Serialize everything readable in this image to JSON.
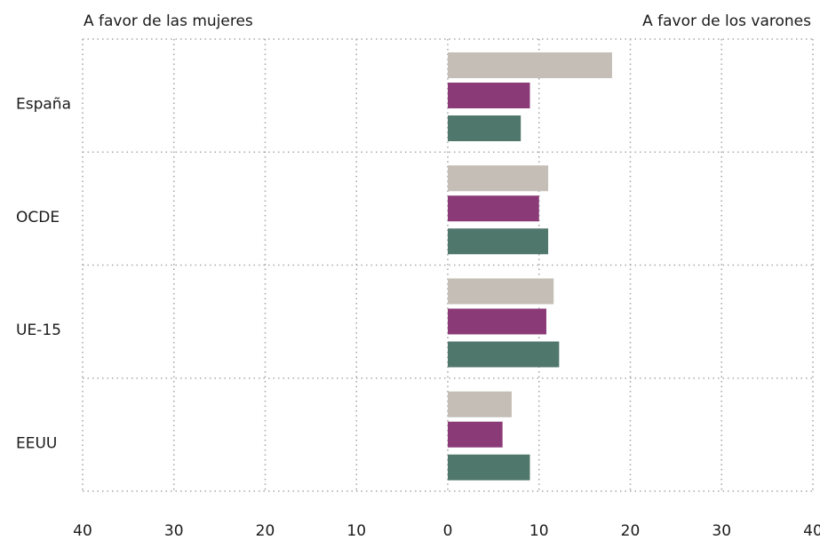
{
  "chart_data": {
    "type": "hbar",
    "annotations": [
      "A favor de las mujeres",
      "A favor de los varones"
    ],
    "categories": [
      "España",
      "OCDE",
      "UE-15",
      "EEUU"
    ],
    "series": [
      {
        "color": "#c4beb6",
        "values": [
          18,
          11,
          11.6,
          7
        ]
      },
      {
        "color": "#8b3a78",
        "values": [
          9,
          10,
          10.8,
          6
        ]
      },
      {
        "color": "#50776c",
        "values": [
          8,
          11,
          12.2,
          9
        ]
      }
    ],
    "xlim": [
      -40,
      40
    ],
    "xticks": [
      {
        "value": -40,
        "label": "40"
      },
      {
        "value": -30,
        "label": "30"
      },
      {
        "value": -20,
        "label": "20"
      },
      {
        "value": -10,
        "label": "10"
      },
      0,
      10,
      20,
      30,
      40
    ],
    "grid": true
  }
}
